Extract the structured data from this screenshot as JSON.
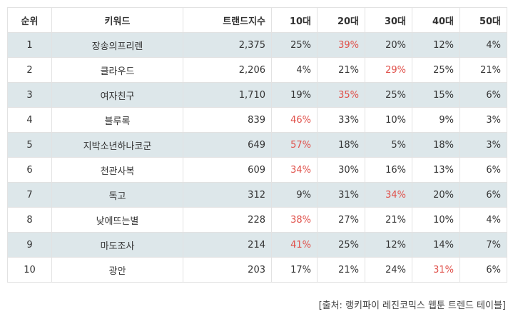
{
  "table": {
    "headers": [
      "순위",
      "키워드",
      "트랜드지수",
      "10대",
      "20대",
      "30대",
      "40대",
      "50대"
    ],
    "rows": [
      {
        "rank": "1",
        "keyword": "장송의프리렌",
        "index": "2,375",
        "ages": [
          "25%",
          "39%",
          "20%",
          "12%",
          "4%"
        ],
        "highlight": 1
      },
      {
        "rank": "2",
        "keyword": "클라우드",
        "index": "2,206",
        "ages": [
          "4%",
          "21%",
          "29%",
          "25%",
          "21%"
        ],
        "highlight": 2
      },
      {
        "rank": "3",
        "keyword": "여자친구",
        "index": "1,710",
        "ages": [
          "19%",
          "35%",
          "25%",
          "15%",
          "6%"
        ],
        "highlight": 1
      },
      {
        "rank": "4",
        "keyword": "블루록",
        "index": "839",
        "ages": [
          "46%",
          "33%",
          "10%",
          "9%",
          "3%"
        ],
        "highlight": 0
      },
      {
        "rank": "5",
        "keyword": "지박소년하나코군",
        "index": "649",
        "ages": [
          "57%",
          "18%",
          "5%",
          "18%",
          "3%"
        ],
        "highlight": 0
      },
      {
        "rank": "6",
        "keyword": "천관사복",
        "index": "609",
        "ages": [
          "34%",
          "30%",
          "16%",
          "13%",
          "6%"
        ],
        "highlight": 0
      },
      {
        "rank": "7",
        "keyword": "독고",
        "index": "312",
        "ages": [
          "9%",
          "31%",
          "34%",
          "20%",
          "6%"
        ],
        "highlight": 2
      },
      {
        "rank": "8",
        "keyword": "낮에뜨는별",
        "index": "228",
        "ages": [
          "38%",
          "27%",
          "21%",
          "10%",
          "4%"
        ],
        "highlight": 0
      },
      {
        "rank": "9",
        "keyword": "마도조사",
        "index": "214",
        "ages": [
          "41%",
          "25%",
          "12%",
          "14%",
          "7%"
        ],
        "highlight": 0
      },
      {
        "rank": "10",
        "keyword": "광안",
        "index": "203",
        "ages": [
          "17%",
          "21%",
          "24%",
          "31%",
          "6%"
        ],
        "highlight": 3
      }
    ]
  },
  "source": "[출처: 랭키파이 레진코믹스 웹툰 트렌드 테이블]",
  "colors": {
    "stripe": "#dde7ea",
    "highlight_text": "#e0504a",
    "border": "#e2e2e2"
  }
}
